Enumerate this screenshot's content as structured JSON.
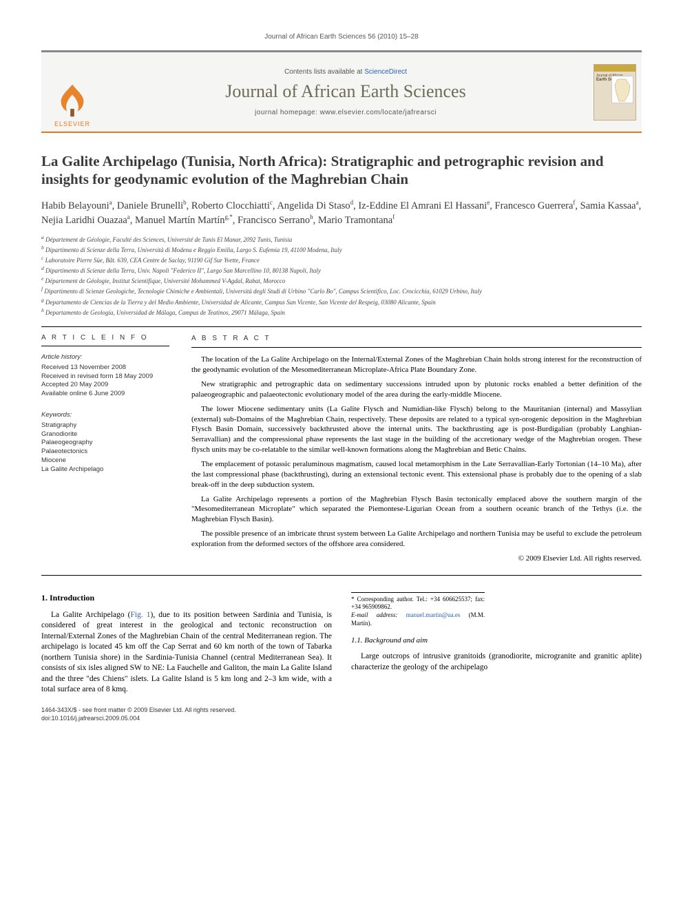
{
  "runningHeader": "Journal of African Earth Sciences 56 (2010) 15–28",
  "masthead": {
    "contentsPrefix": "Contents lists available at ",
    "contentsLink": "ScienceDirect",
    "journalName": "Journal of African Earth Sciences",
    "homepagePrefix": "journal homepage: ",
    "homepageUrl": "www.elsevier.com/locate/jafrearsci",
    "publisherLabel": "ELSEVIER",
    "coverTitleSmall": "Journal of African",
    "coverTitleBig": "Earth Sciences",
    "colors": {
      "accent": "#e67817",
      "journalNameColor": "#6b6b57",
      "topRule": "#888888",
      "mastheadBg": "#f5f5f3"
    }
  },
  "article": {
    "title": "La Galite Archipelago (Tunisia, North Africa): Stratigraphic and petrographic revision and insights for geodynamic evolution of the Maghrebian Chain",
    "authorsHtml": "Habib Belayouni<sup>a</sup>, Daniele Brunelli<sup>b</sup>, Roberto Clocchiatti<sup>c</sup>, Angelida Di Staso<sup>d</sup>, Iz-Eddine El Amrani El Hassani<sup>e</sup>, Francesco Guerrera<sup>f</sup>, Samia Kassaa<sup>a</sup>, Nejia Laridhi Ouazaa<sup>a</sup>, Manuel Martín Martín<sup>g,*</sup>, Francisco Serrano<sup>h</sup>, Mario Tramontana<sup>f</sup>",
    "affiliations": [
      "a Département de Géologie, Faculté des Sciences, Université de Tunis El Manar, 2092 Tunis, Tunisia",
      "b Dipartimento di Scienze della Terra, Università di Modena e Reggio Emilia, Largo S. Eufemia 19, 41100 Modena, Italy",
      "c Laboratoire Pierre Süe, Bât. 639, CEA Centre de Saclay, 91190 Gif Sur Yvette, France",
      "d Dipartimento di Scienze della Terra, Univ. Napoli \"Federico II\", Largo San Marcellino 10, 80138 Napoli, Italy",
      "e Département de Géologie, Institut Scientifique, Université Mohammed V-Agdal, Rabat, Morocco",
      "f Dipartimento di Scienze Geologiche, Tecnologie Chimiche e Ambientali, Università degli Studi di Urbino \"Carlo Bo\", Campus Scientifico, Loc. Crocicchia, 61029 Urbino, Italy",
      "g Departamento de Ciencias de la Tierra y del Medio Ambiente, Universidad de Alicante, Campus San Vicente, San Vicente del Respeig, 03080 Alicante, Spain",
      "h Departamento de Geología, Universidad de Málaga, Campus de Teatinos, 29071 Málaga, Spain"
    ]
  },
  "articleInfo": {
    "heading": "A R T I C L E   I N F O",
    "historyLabel": "Article history:",
    "history": [
      "Received 13 November 2008",
      "Received in revised form 18 May 2009",
      "Accepted 20 May 2009",
      "Available online 6 June 2009"
    ],
    "keywordsLabel": "Keywords:",
    "keywords": [
      "Stratigraphy",
      "Granodiorite",
      "Palaeogeography",
      "Palaeotectonics",
      "Miocene",
      "La Galite Archipelago"
    ]
  },
  "abstract": {
    "heading": "A B S T R A C T",
    "paragraphs": [
      "The location of the La Galite Archipelago on the Internal/External Zones of the Maghrebian Chain holds strong interest for the reconstruction of the geodynamic evolution of the Mesomediterranean Microplate-Africa Plate Boundary Zone.",
      "New stratigraphic and petrographic data on sedimentary successions intruded upon by plutonic rocks enabled a better definition of the palaeogeographic and palaeotectonic evolutionary model of the area during the early-middle Miocene.",
      "The lower Miocene sedimentary units (La Galite Flysch and Numidian-like Flysch) belong to the Mauritanian (internal) and Massylian (external) sub-Domains of the Maghrebian Chain, respectively. These deposits are related to a typical syn-orogenic deposition in the Maghrebian Flysch Basin Domain, successively backthrusted above the internal units. The backthrusting age is post-Burdigalian (probably Langhian-Serravallian) and the compressional phase represents the last stage in the building of the accretionary wedge of the Maghrebian orogen. These flysch units may be co-relatable to the similar well-known formations along the Maghrebian and Betic Chains.",
      "The emplacement of potassic peraluminous magmatism, caused local metamorphism in the Late Serravallian-Early Tortonian (14–10 Ma), after the last compressional phase (backthrusting), during an extensional tectonic event. This extensional phase is probably due to the opening of a slab break-off in the deep subduction system.",
      "La Galite Archipelago represents a portion of the Maghrebian Flysch Basin tectonically emplaced above the southern margin of the \"Mesomediterranean Microplate\" which separated the Piemontese-Ligurian Ocean from a southern oceanic branch of the Tethys (i.e. the Maghrebian Flysch Basin).",
      "The possible presence of an imbricate thrust system between La Galite Archipelago and northern Tunisia may be useful to exclude the petroleum exploration from the deformed sectors of the offshore area considered."
    ],
    "copyright": "© 2009 Elsevier Ltd. All rights reserved."
  },
  "body": {
    "section1Heading": "1. Introduction",
    "section1p1a": "La Galite Archipelago (",
    "section1FigRef": "Fig. 1",
    "section1p1b": "), due to its position between Sardinia and Tunisia, is considered of great interest in the geological and tectonic reconstruction on Internal/External Zones of the Maghrebian Chain of the central Mediterranean region. The archipelago is located 45 km off the Cap Serrat and 60 km north of the town of Tabarka (northern Tunisia shore) in the Sardinia-Tunisia Channel (central Mediterranean Sea). It consists of six isles aligned SW to NE: La Fauchelle and Galiton, the main La Galite Island and the three \"des Chiens\" islets. La Galite Island is 5 km long and 2–3 km wide, with a total surface area of 8 kmq.",
    "section11Heading": "1.1. Background and aim",
    "section11p1": "Large outcrops of intrusive granitoids (granodiorite, microgranite and granitic aplite) characterize the geology of the archipelago"
  },
  "footnotes": {
    "corresponding": "* Corresponding author. Tel.: +34 606625537; fax: +34 965909862.",
    "emailLabel": "E-mail address: ",
    "email": "manuel.martin@ua.es",
    "emailSuffix": " (M.M. Martín)."
  },
  "footer": {
    "line1": "1464-343X/$ - see front matter © 2009 Elsevier Ltd. All rights reserved.",
    "line2": "doi:10.1016/j.jafrearsci.2009.05.004"
  }
}
